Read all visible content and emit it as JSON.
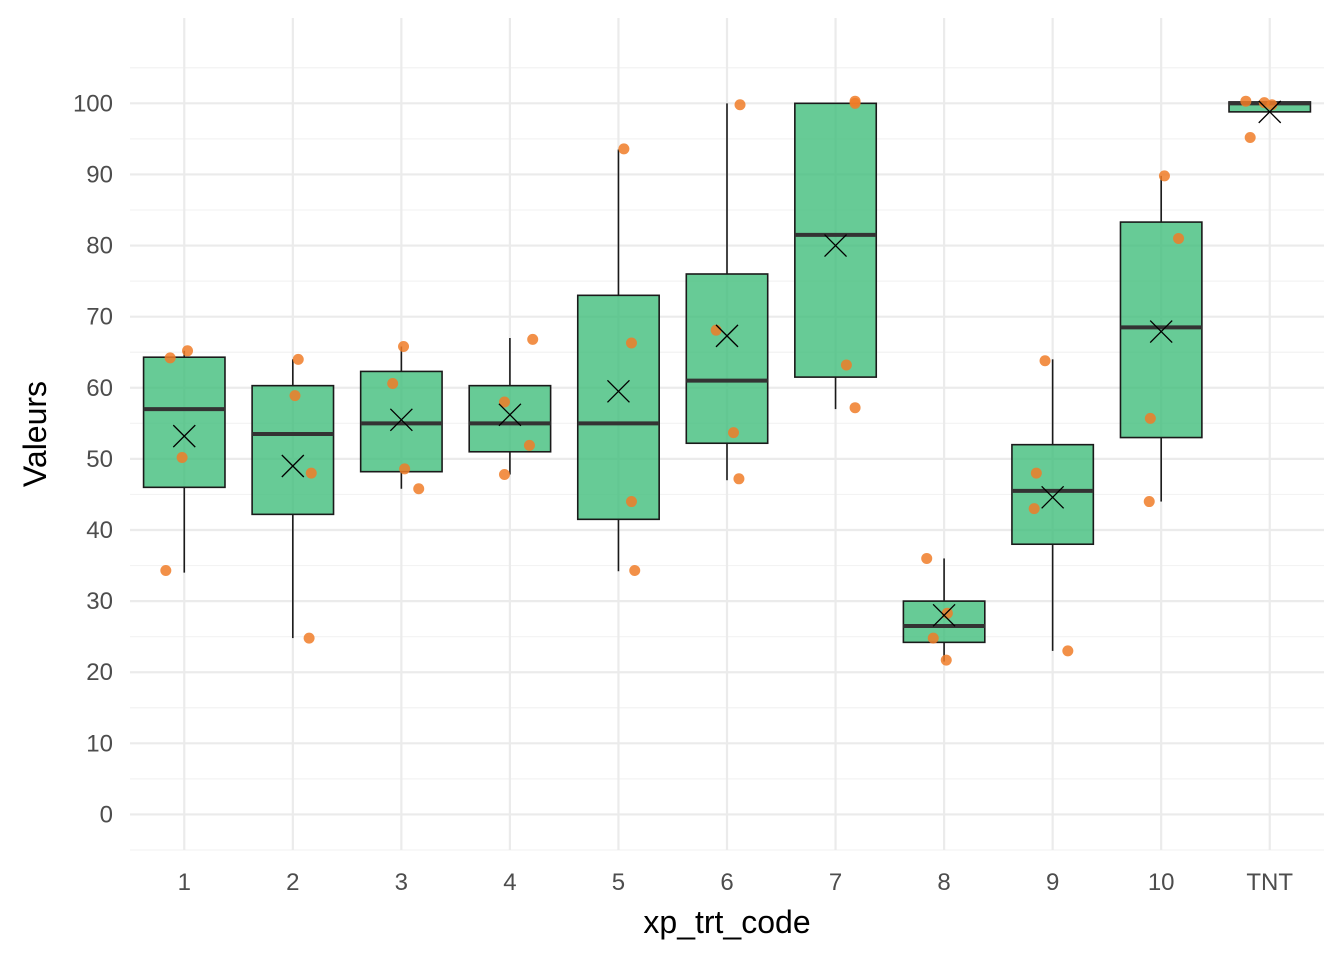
{
  "chart_data": {
    "type": "boxplot",
    "xlabel": "xp_trt_code",
    "ylabel": "Valeurs",
    "categories": [
      "1",
      "2",
      "3",
      "4",
      "5",
      "6",
      "7",
      "8",
      "9",
      "10",
      "TNT"
    ],
    "ylim": [
      -5,
      112
    ],
    "yticks": [
      0,
      10,
      20,
      30,
      40,
      50,
      60,
      70,
      80,
      90,
      100
    ],
    "grid": true,
    "legend": "none",
    "colors": {
      "box_fill": "#3cbc78",
      "box_stroke": "#1a1a1a",
      "point": "#f07d28",
      "grid_major": "#ebebeb",
      "grid_minor": "#f3f3f3",
      "tick_text": "#4d4d4d"
    },
    "boxes": [
      {
        "category": "1",
        "whisker_low": 34.0,
        "q1": 46.0,
        "median": 57.0,
        "q3": 64.3,
        "whisker_high": 65.2,
        "mean": 53.2
      },
      {
        "category": "2",
        "whisker_low": 24.8,
        "q1": 42.2,
        "median": 53.5,
        "q3": 60.3,
        "whisker_high": 64.0,
        "mean": 49.0
      },
      {
        "category": "3",
        "whisker_low": 45.8,
        "q1": 48.2,
        "median": 55.0,
        "q3": 62.3,
        "whisker_high": 65.8,
        "mean": 55.5
      },
      {
        "category": "4",
        "whisker_low": 47.8,
        "q1": 51.0,
        "median": 55.0,
        "q3": 60.3,
        "whisker_high": 67.0,
        "mean": 56.2
      },
      {
        "category": "5",
        "whisker_low": 34.2,
        "q1": 41.5,
        "median": 55.0,
        "q3": 73.0,
        "whisker_high": 93.5,
        "mean": 59.5
      },
      {
        "category": "6",
        "whisker_low": 47.0,
        "q1": 52.2,
        "median": 61.0,
        "q3": 76.0,
        "whisker_high": 100.0,
        "mean": 67.3
      },
      {
        "category": "7",
        "whisker_low": 57.0,
        "q1": 61.5,
        "median": 81.5,
        "q3": 100.0,
        "whisker_high": 100.0,
        "mean": 80.0
      },
      {
        "category": "8",
        "whisker_low": 21.5,
        "q1": 24.2,
        "median": 26.5,
        "q3": 30.0,
        "whisker_high": 36.0,
        "mean": 28.0
      },
      {
        "category": "9",
        "whisker_low": 23.0,
        "q1": 38.0,
        "median": 45.5,
        "q3": 52.0,
        "whisker_high": 64.0,
        "mean": 44.6
      },
      {
        "category": "10",
        "whisker_low": 44.0,
        "q1": 53.0,
        "median": 68.5,
        "q3": 83.3,
        "whisker_high": 89.8,
        "mean": 67.9
      },
      {
        "category": "TNT",
        "whisker_low": 98.8,
        "q1": 98.8,
        "median": 100.0,
        "q3": 100.2,
        "whisker_high": 100.2,
        "mean": 98.8
      }
    ],
    "points": [
      {
        "category": "1",
        "jitter": -0.17,
        "y": 34.3
      },
      {
        "category": "1",
        "jitter": -0.13,
        "y": 64.2
      },
      {
        "category": "1",
        "jitter": 0.03,
        "y": 65.2
      },
      {
        "category": "1",
        "jitter": -0.02,
        "y": 50.2
      },
      {
        "category": "2",
        "jitter": 0.05,
        "y": 64.0
      },
      {
        "category": "2",
        "jitter": 0.02,
        "y": 58.9
      },
      {
        "category": "2",
        "jitter": 0.17,
        "y": 48.0
      },
      {
        "category": "2",
        "jitter": 0.15,
        "y": 24.8
      },
      {
        "category": "3",
        "jitter": -0.08,
        "y": 60.6
      },
      {
        "category": "3",
        "jitter": 0.02,
        "y": 65.8
      },
      {
        "category": "3",
        "jitter": 0.03,
        "y": 48.6
      },
      {
        "category": "3",
        "jitter": 0.16,
        "y": 45.8
      },
      {
        "category": "4",
        "jitter": -0.05,
        "y": 58.0
      },
      {
        "category": "4",
        "jitter": 0.21,
        "y": 66.8
      },
      {
        "category": "4",
        "jitter": 0.18,
        "y": 51.9
      },
      {
        "category": "4",
        "jitter": -0.05,
        "y": 47.8
      },
      {
        "category": "5",
        "jitter": 0.05,
        "y": 93.6
      },
      {
        "category": "5",
        "jitter": 0.12,
        "y": 66.3
      },
      {
        "category": "5",
        "jitter": 0.12,
        "y": 44.0
      },
      {
        "category": "5",
        "jitter": 0.15,
        "y": 34.3
      },
      {
        "category": "6",
        "jitter": 0.12,
        "y": 99.8
      },
      {
        "category": "6",
        "jitter": -0.1,
        "y": 68.1
      },
      {
        "category": "6",
        "jitter": 0.06,
        "y": 53.7
      },
      {
        "category": "6",
        "jitter": 0.11,
        "y": 47.2
      },
      {
        "category": "7",
        "jitter": 0.18,
        "y": 100.3
      },
      {
        "category": "7",
        "jitter": 0.18,
        "y": 100.0
      },
      {
        "category": "7",
        "jitter": 0.1,
        "y": 63.2
      },
      {
        "category": "7",
        "jitter": 0.18,
        "y": 57.2
      },
      {
        "category": "8",
        "jitter": -0.16,
        "y": 36.0
      },
      {
        "category": "8",
        "jitter": 0.03,
        "y": 28.3
      },
      {
        "category": "8",
        "jitter": -0.1,
        "y": 24.8
      },
      {
        "category": "8",
        "jitter": 0.02,
        "y": 21.7
      },
      {
        "category": "9",
        "jitter": -0.07,
        "y": 63.8
      },
      {
        "category": "9",
        "jitter": -0.15,
        "y": 48.0
      },
      {
        "category": "9",
        "jitter": -0.17,
        "y": 43.0
      },
      {
        "category": "9",
        "jitter": 0.14,
        "y": 23.0
      },
      {
        "category": "10",
        "jitter": 0.03,
        "y": 89.8
      },
      {
        "category": "10",
        "jitter": 0.16,
        "y": 81.0
      },
      {
        "category": "10",
        "jitter": -0.1,
        "y": 55.7
      },
      {
        "category": "10",
        "jitter": -0.11,
        "y": 44.0
      },
      {
        "category": "TNT",
        "jitter": -0.22,
        "y": 100.3
      },
      {
        "category": "TNT",
        "jitter": -0.05,
        "y": 100.1
      },
      {
        "category": "TNT",
        "jitter": 0.02,
        "y": 99.8
      },
      {
        "category": "TNT",
        "jitter": -0.18,
        "y": 95.2
      }
    ]
  }
}
